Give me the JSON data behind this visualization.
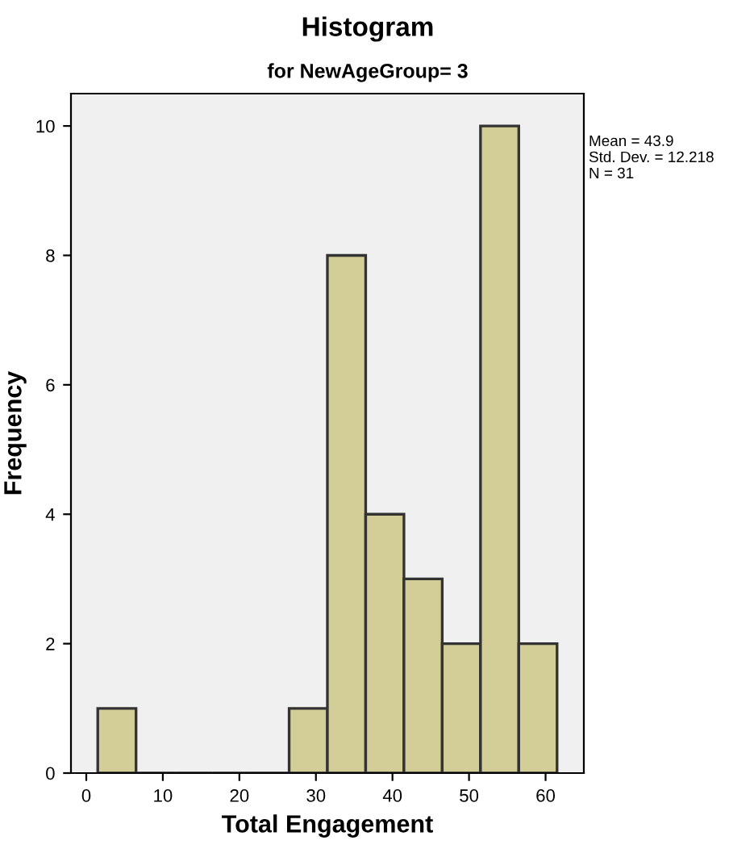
{
  "chart_data": {
    "type": "histogram",
    "title": "Histogram",
    "subtitle": "for NewAgeGroup= 3",
    "xlabel": "Total Engagement",
    "ylabel": "Frequency",
    "bins": [
      1.5,
      6.5,
      11.5,
      16.5,
      21.5,
      26.5,
      31.5,
      36.5,
      41.5,
      46.5,
      51.5,
      56.5,
      61.5
    ],
    "values": [
      1,
      0,
      0,
      0,
      0,
      1,
      8,
      4,
      3,
      2,
      10,
      2
    ],
    "color": "#d3ce97",
    "xlim": [
      -2,
      65
    ],
    "xticks": [
      0,
      10,
      20,
      30,
      40,
      50,
      60
    ],
    "ylim": [
      0,
      10.5
    ],
    "yticks": [
      0,
      2,
      4,
      6,
      8,
      10
    ],
    "grid": false,
    "legend": false,
    "annotations": [
      "Mean = 43.9",
      "Std. Dev. = 12.218",
      "N = 31"
    ]
  }
}
